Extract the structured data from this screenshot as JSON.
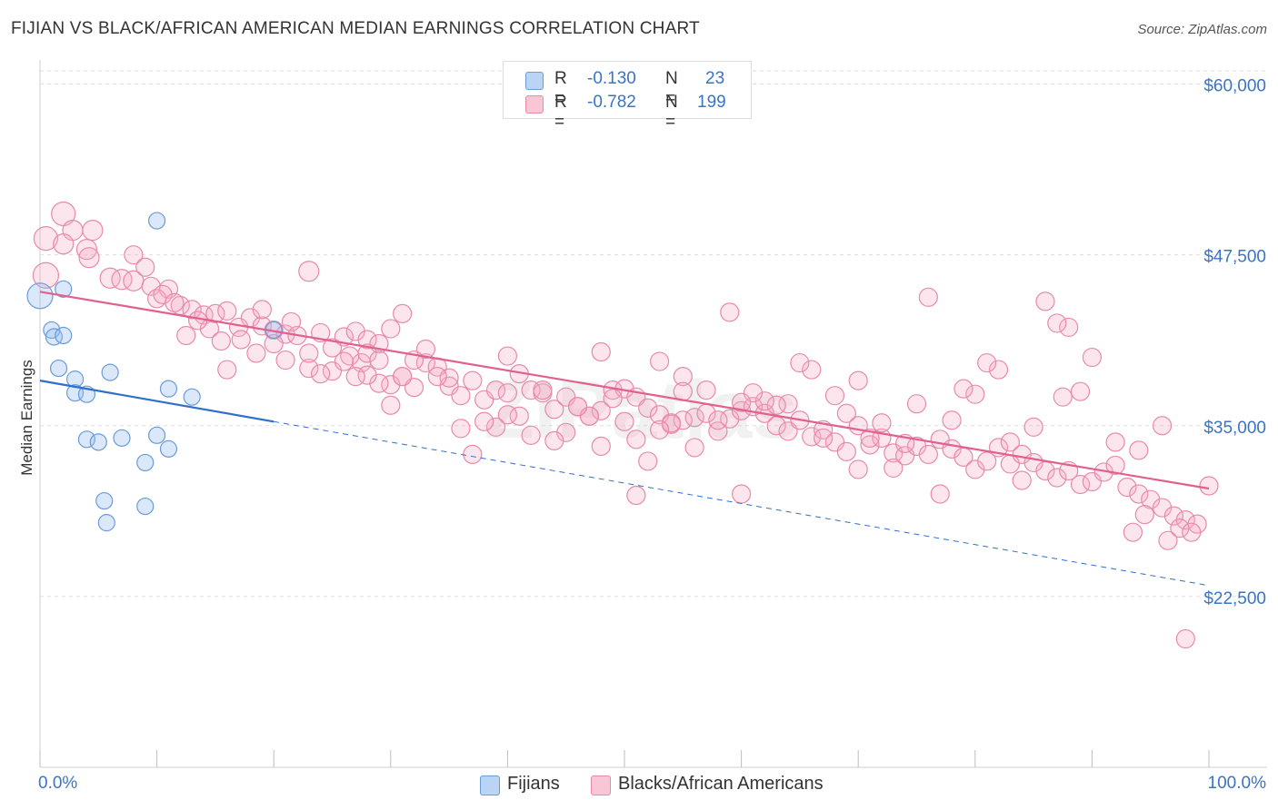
{
  "title": "FIJIAN VS BLACK/AFRICAN AMERICAN MEDIAN EARNINGS CORRELATION CHART",
  "source": "Source: ZipAtlas.com",
  "watermark": "ZIPatlas",
  "legend": {
    "r_label": "R =",
    "n_label": "N =",
    "rows": [
      {
        "r": "-0.130",
        "n": "23",
        "color": "#b9d4f5",
        "border": "#6b9bd8"
      },
      {
        "r": "-0.782",
        "n": "199",
        "color": "#f9c6d6",
        "border": "#e88aa8"
      }
    ]
  },
  "bottom_legend": [
    {
      "label": "Fijians",
      "color": "#b9d4f5",
      "border": "#6b9bd8"
    },
    {
      "label": "Blacks/African Americans",
      "color": "#f9c6d6",
      "border": "#e88aa8"
    }
  ],
  "colors": {
    "blue_fill": "rgba(150,190,240,0.35)",
    "blue_stroke": "#6b9bd8",
    "blue_line": "#2f6fc9",
    "pink_fill": "rgba(245,170,195,0.30)",
    "pink_stroke": "#e88aa8",
    "pink_line": "#e0608f",
    "grid": "#dedede",
    "axis_label": "#3b74c4"
  },
  "chart_data": {
    "type": "scatter",
    "title": "FIJIAN VS BLACK/AFRICAN AMERICAN MEDIAN EARNINGS CORRELATION CHART",
    "xlabel": "",
    "ylabel": "Median Earnings",
    "x_tick_labels": [
      "0.0%",
      "100.0%"
    ],
    "y_tick_labels": [
      "$60,000",
      "$47,500",
      "$35,000",
      "$22,500"
    ],
    "y_ticks": [
      60000,
      47500,
      35000,
      22500
    ],
    "xlim": [
      0,
      100
    ],
    "ylim": [
      10000,
      61500
    ],
    "series": [
      {
        "name": "Fijians",
        "r": -0.13,
        "n": 23,
        "trend": {
          "x0": 0,
          "y0": 38300,
          "x1": 100,
          "y1": 23300,
          "solid_until": 20
        },
        "points": [
          [
            0,
            44500,
            14
          ],
          [
            2,
            45000,
            9
          ],
          [
            1,
            42000,
            9
          ],
          [
            1.2,
            41500,
            9
          ],
          [
            1.6,
            39200,
            9
          ],
          [
            3,
            38400,
            9
          ],
          [
            3,
            37400,
            9
          ],
          [
            4,
            37300,
            9
          ],
          [
            6,
            38900,
            9
          ],
          [
            10,
            50000,
            9
          ],
          [
            11,
            37700,
            9
          ],
          [
            13,
            37100,
            9
          ],
          [
            20,
            42000,
            9
          ],
          [
            4,
            34000,
            9
          ],
          [
            5,
            33800,
            9
          ],
          [
            7,
            34100,
            9
          ],
          [
            10,
            34300,
            9
          ],
          [
            11,
            33300,
            9
          ],
          [
            9,
            32300,
            9
          ],
          [
            5.5,
            29500,
            9
          ],
          [
            5.7,
            27900,
            9
          ],
          [
            9,
            29100,
            9
          ],
          [
            2,
            41600,
            9
          ]
        ]
      },
      {
        "name": "Blacks/African Americans",
        "r": -0.782,
        "n": 199,
        "trend": {
          "x0": 0,
          "y0": 44800,
          "x1": 100,
          "y1": 30400
        },
        "points": [
          [
            2,
            50500,
            13
          ],
          [
            2.8,
            49300,
            11
          ],
          [
            4.5,
            49300,
            11
          ],
          [
            0.5,
            48700,
            13
          ],
          [
            2,
            48300,
            11
          ],
          [
            4,
            47900,
            11
          ],
          [
            4.2,
            47300,
            11
          ],
          [
            0.5,
            46000,
            14
          ],
          [
            8,
            47500,
            10
          ],
          [
            9,
            46600,
            10
          ],
          [
            23,
            46300,
            11
          ],
          [
            6,
            45800,
            11
          ],
          [
            7,
            45700,
            11
          ],
          [
            8,
            45600,
            11
          ],
          [
            9.5,
            45200,
            10
          ],
          [
            11,
            45000,
            10
          ],
          [
            10,
            44300,
            10
          ],
          [
            12,
            43800,
            10
          ],
          [
            13,
            43500,
            10
          ],
          [
            14,
            43100,
            10
          ],
          [
            15,
            43200,
            10
          ],
          [
            16,
            43400,
            10
          ],
          [
            18,
            42900,
            10
          ],
          [
            19,
            42300,
            10
          ],
          [
            20,
            42000,
            10
          ],
          [
            21,
            41700,
            10
          ],
          [
            22,
            41600,
            10
          ],
          [
            24,
            41800,
            10
          ],
          [
            26,
            41500,
            10
          ],
          [
            27,
            41900,
            10
          ],
          [
            28,
            41300,
            10
          ],
          [
            29,
            41000,
            10
          ],
          [
            30,
            42100,
            10
          ],
          [
            31,
            43200,
            10
          ],
          [
            10.5,
            44600,
            10
          ],
          [
            11.5,
            44000,
            10
          ],
          [
            14.5,
            42100,
            10
          ],
          [
            17,
            42200,
            10
          ],
          [
            17.2,
            41300,
            10
          ],
          [
            18.5,
            40300,
            10
          ],
          [
            21,
            39800,
            10
          ],
          [
            23,
            39200,
            10
          ],
          [
            25,
            39000,
            10
          ],
          [
            26.5,
            40100,
            10
          ],
          [
            27.5,
            39600,
            10
          ],
          [
            28,
            40300,
            10
          ],
          [
            29,
            39800,
            10
          ],
          [
            30,
            38000,
            10
          ],
          [
            31,
            38600,
            10
          ],
          [
            32,
            37800,
            10
          ],
          [
            33,
            39600,
            10
          ],
          [
            34,
            39300,
            10
          ],
          [
            35,
            37900,
            10
          ],
          [
            36,
            37200,
            10
          ],
          [
            37,
            38300,
            10
          ],
          [
            38,
            36900,
            10
          ],
          [
            39,
            37600,
            10
          ],
          [
            40,
            37400,
            10
          ],
          [
            41,
            38800,
            10
          ],
          [
            42,
            37600,
            10
          ],
          [
            43,
            37400,
            10
          ],
          [
            44,
            36200,
            10
          ],
          [
            45,
            37100,
            10
          ],
          [
            46,
            36400,
            10
          ],
          [
            47,
            35700,
            10
          ],
          [
            48,
            36100,
            10
          ],
          [
            49,
            37600,
            10
          ],
          [
            50,
            37700,
            10
          ],
          [
            51,
            37100,
            10
          ],
          [
            52,
            36300,
            10
          ],
          [
            53,
            35800,
            10
          ],
          [
            54,
            35100,
            10
          ],
          [
            55,
            35400,
            10
          ],
          [
            56,
            35600,
            10
          ],
          [
            57,
            35900,
            10
          ],
          [
            58,
            34600,
            10
          ],
          [
            59,
            35500,
            10
          ],
          [
            60,
            36100,
            10
          ],
          [
            61,
            36400,
            10
          ],
          [
            62,
            35900,
            10
          ],
          [
            63,
            35000,
            10
          ],
          [
            64,
            34600,
            10
          ],
          [
            65,
            35400,
            10
          ],
          [
            66,
            34200,
            10
          ],
          [
            67,
            34700,
            10
          ],
          [
            68,
            33800,
            10
          ],
          [
            69,
            33100,
            10
          ],
          [
            70,
            35000,
            10
          ],
          [
            71,
            33600,
            10
          ],
          [
            72,
            34100,
            10
          ],
          [
            73,
            33000,
            10
          ],
          [
            74,
            32800,
            10
          ],
          [
            75,
            33500,
            10
          ],
          [
            76,
            32900,
            10
          ],
          [
            77,
            34000,
            10
          ],
          [
            78,
            33300,
            10
          ],
          [
            79,
            32700,
            10
          ],
          [
            80,
            31800,
            10
          ],
          [
            81,
            32400,
            10
          ],
          [
            82,
            33400,
            10
          ],
          [
            83,
            32200,
            10
          ],
          [
            84,
            32900,
            10
          ],
          [
            85,
            32300,
            10
          ],
          [
            86,
            31700,
            10
          ],
          [
            87,
            31200,
            10
          ],
          [
            88,
            31700,
            10
          ],
          [
            89,
            30700,
            10
          ],
          [
            90,
            30900,
            10
          ],
          [
            91,
            31600,
            10
          ],
          [
            92,
            32100,
            10
          ],
          [
            93,
            30500,
            10
          ],
          [
            94,
            30000,
            10
          ],
          [
            95,
            29600,
            10
          ],
          [
            96,
            29000,
            10
          ],
          [
            97,
            28400,
            10
          ],
          [
            98,
            28100,
            10
          ],
          [
            99,
            27800,
            10
          ],
          [
            100,
            30600,
            10
          ],
          [
            96.5,
            26600,
            10
          ],
          [
            97.5,
            27500,
            10
          ],
          [
            98.5,
            27200,
            10
          ],
          [
            94.5,
            28500,
            10
          ],
          [
            93.5,
            27200,
            10
          ],
          [
            98,
            19400,
            10
          ],
          [
            92,
            33800,
            10
          ],
          [
            94,
            33200,
            10
          ],
          [
            96,
            35000,
            10
          ],
          [
            90,
            40000,
            10
          ],
          [
            88,
            42200,
            10
          ],
          [
            87,
            42500,
            10
          ],
          [
            86,
            44100,
            10
          ],
          [
            89,
            37500,
            10
          ],
          [
            87.5,
            37100,
            10
          ],
          [
            85,
            34900,
            10
          ],
          [
            83,
            33800,
            10
          ],
          [
            82,
            39100,
            10
          ],
          [
            81,
            39600,
            10
          ],
          [
            80,
            37300,
            10
          ],
          [
            79,
            37700,
            10
          ],
          [
            78,
            35400,
            10
          ],
          [
            77,
            30000,
            10
          ],
          [
            76,
            44400,
            10
          ],
          [
            75,
            36600,
            10
          ],
          [
            74,
            33700,
            10
          ],
          [
            73,
            31900,
            10
          ],
          [
            72,
            35200,
            10
          ],
          [
            71,
            34100,
            10
          ],
          [
            70,
            31800,
            10
          ],
          [
            69,
            35900,
            10
          ],
          [
            68,
            37200,
            10
          ],
          [
            67,
            34100,
            10
          ],
          [
            66,
            39100,
            10
          ],
          [
            65,
            39600,
            10
          ],
          [
            64,
            36600,
            10
          ],
          [
            63,
            36500,
            10
          ],
          [
            62,
            36800,
            10
          ],
          [
            61,
            37400,
            10
          ],
          [
            60,
            36700,
            10
          ],
          [
            59,
            43300,
            10
          ],
          [
            58,
            35400,
            10
          ],
          [
            57,
            37600,
            10
          ],
          [
            56,
            33400,
            10
          ],
          [
            55,
            38600,
            10
          ],
          [
            54,
            35200,
            10
          ],
          [
            53,
            34700,
            10
          ],
          [
            52,
            32400,
            10
          ],
          [
            51,
            34000,
            10
          ],
          [
            50,
            35300,
            10
          ],
          [
            49,
            37000,
            10
          ],
          [
            48,
            33500,
            10
          ],
          [
            47,
            35700,
            10
          ],
          [
            46,
            36400,
            10
          ],
          [
            45,
            34500,
            10
          ],
          [
            44,
            33900,
            10
          ],
          [
            43,
            37600,
            10
          ],
          [
            42,
            34300,
            10
          ],
          [
            41,
            35700,
            10
          ],
          [
            40,
            35800,
            10
          ],
          [
            39,
            34900,
            10
          ],
          [
            38,
            35300,
            10
          ],
          [
            37,
            32900,
            10
          ],
          [
            36,
            34800,
            10
          ],
          [
            35,
            38500,
            10
          ],
          [
            34,
            38600,
            10
          ],
          [
            33,
            40600,
            10
          ],
          [
            32,
            39800,
            10
          ],
          [
            31,
            38600,
            10
          ],
          [
            30,
            36500,
            10
          ],
          [
            29,
            38100,
            10
          ],
          [
            28,
            38700,
            10
          ],
          [
            27,
            38600,
            10
          ],
          [
            26,
            39700,
            10
          ],
          [
            25,
            40700,
            10
          ],
          [
            24,
            38800,
            10
          ],
          [
            23,
            40300,
            10
          ],
          [
            21.5,
            42600,
            10
          ],
          [
            20,
            41000,
            10
          ],
          [
            19,
            43500,
            10
          ],
          [
            16,
            39100,
            10
          ],
          [
            15.5,
            41200,
            10
          ],
          [
            13.5,
            42700,
            10
          ],
          [
            12.5,
            41600,
            10
          ],
          [
            55,
            37500,
            10
          ],
          [
            48,
            40400,
            10
          ],
          [
            40,
            40100,
            10
          ],
          [
            53,
            39700,
            10
          ],
          [
            51,
            29900,
            10
          ],
          [
            60,
            30000,
            10
          ],
          [
            70,
            38300,
            10
          ],
          [
            84,
            31000,
            10
          ]
        ]
      }
    ]
  }
}
